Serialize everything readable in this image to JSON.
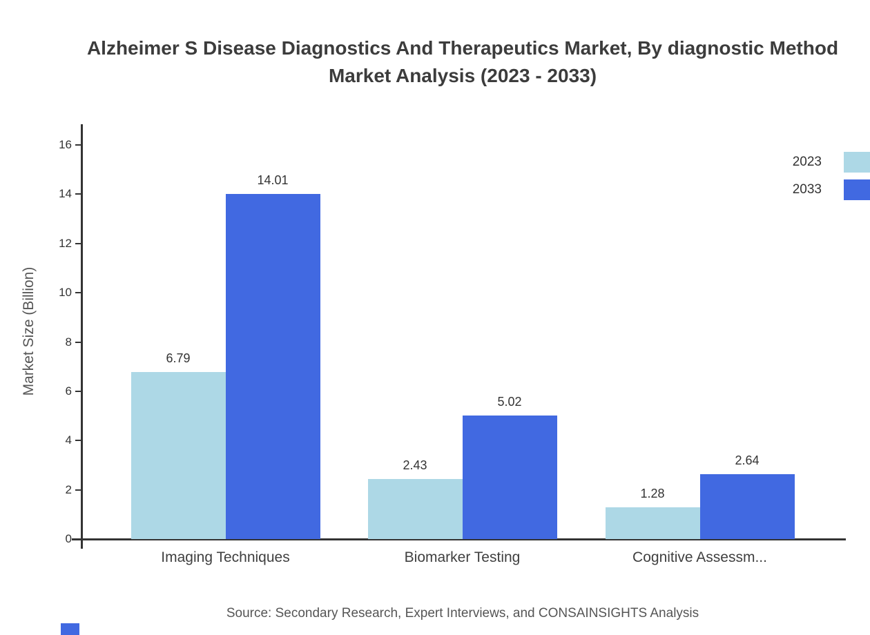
{
  "page": {
    "title_line1": "Alzheimer S Disease Diagnostics And Therapeutics Market, By diagnostic Method",
    "title_line2": "Market Analysis (2023 - 2033)"
  },
  "chart_data": {
    "type": "bar",
    "title": "Alzheimer S Disease Diagnostics And Therapeutics Market, By diagnostic Method Market Analysis (2023 - 2033)",
    "categories": [
      "Imaging Techniques",
      "Biomarker Testing",
      "Cognitive Assessm..."
    ],
    "series": [
      {
        "name": "2023",
        "color": "#ADD8E6",
        "values": [
          6.79,
          2.43,
          1.28
        ]
      },
      {
        "name": "2033",
        "color": "#4169E1",
        "values": [
          14.01,
          5.02,
          2.64
        ]
      }
    ],
    "xlabel": "",
    "ylabel": "Market Size (Billion)",
    "ylim": [
      0,
      16
    ],
    "ytick_step": 2,
    "yticks": [
      0,
      2,
      4,
      6,
      8,
      10,
      12,
      14,
      16
    ],
    "grid": false,
    "legend_position": "top-right",
    "value_labels": {
      "2023": [
        "6.79",
        "2.43",
        "1.28"
      ],
      "2033": [
        "14.01",
        "5.02",
        "2.64"
      ]
    },
    "source": "Source: Secondary Research, Expert Interviews, and CONSAINSIGHTS Analysis",
    "accent_color": "#4169E1"
  }
}
